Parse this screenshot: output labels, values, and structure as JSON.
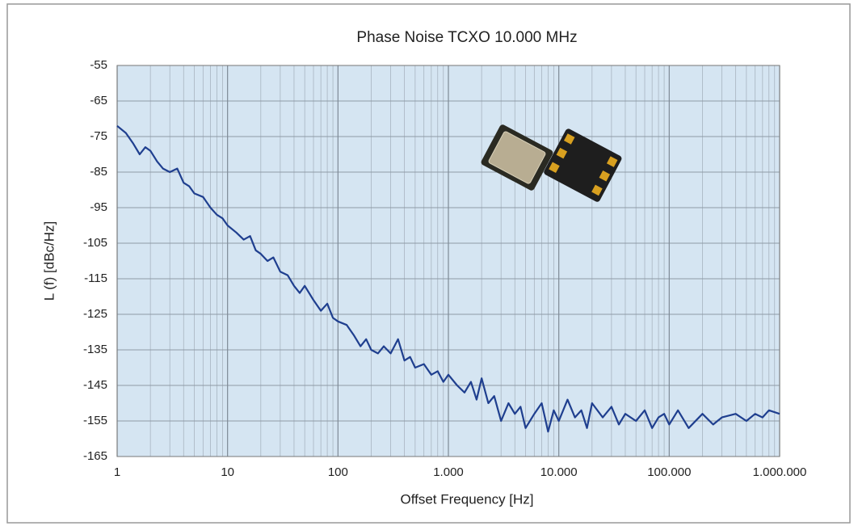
{
  "chart_data": {
    "type": "line",
    "title": "Phase Noise TCXO 10.000 MHz",
    "x_label": "Offset Frequency [Hz]",
    "y_label": "L (f)   [dBc/Hz]",
    "x_scale": "log",
    "grid": true,
    "color": "#1f3f8f",
    "xlim": [
      1,
      1000000
    ],
    "xticks": [
      1,
      10,
      100,
      {
        "value": 1000,
        "label": "1.000"
      },
      {
        "value": 10000,
        "label": "10.000"
      },
      {
        "value": 100000,
        "label": "100.000"
      },
      {
        "value": 1000000,
        "label": "1.000.000"
      }
    ],
    "ylim": [
      -165,
      -55
    ],
    "yticks": [
      -165,
      -155,
      -145,
      -135,
      -125,
      -115,
      -105,
      -95,
      -85,
      -75,
      -65,
      -55
    ],
    "x": [
      1,
      1.2,
      1.4,
      1.6,
      1.8,
      2,
      2.3,
      2.6,
      3,
      3.5,
      4,
      4.5,
      5,
      6,
      7,
      8,
      9,
      10,
      12,
      14,
      16,
      18,
      20,
      23,
      26,
      30,
      35,
      40,
      45,
      50,
      60,
      70,
      80,
      90,
      100,
      120,
      140,
      160,
      180,
      200,
      230,
      260,
      300,
      350,
      400,
      450,
      500,
      600,
      700,
      800,
      900,
      1000,
      1200,
      1400,
      1600,
      1800,
      2000,
      2300,
      2600,
      3000,
      3500,
      4000,
      4500,
      5000,
      6000,
      7000,
      8000,
      9000,
      10000,
      12000,
      14000,
      16000,
      18000,
      20000,
      25000,
      30000,
      35000,
      40000,
      50000,
      60000,
      70000,
      80000,
      90000,
      100000,
      120000,
      150000,
      200000,
      250000,
      300000,
      400000,
      500000,
      600000,
      700000,
      800000,
      1000000
    ],
    "values": [
      -72,
      -74,
      -77,
      -80,
      -78,
      -79,
      -82,
      -84,
      -85,
      -84,
      -88,
      -89,
      -91,
      -92,
      -95,
      -97,
      -98,
      -100,
      -102,
      -104,
      -103,
      -107,
      -108,
      -110,
      -109,
      -113,
      -114,
      -117,
      -119,
      -117,
      -121,
      -124,
      -122,
      -126,
      -127,
      -128,
      -131,
      -134,
      -132,
      -135,
      -136,
      -134,
      -136,
      -132,
      -138,
      -137,
      -140,
      -139,
      -142,
      -141,
      -144,
      -142,
      -145,
      -147,
      -144,
      -149,
      -143,
      -150,
      -148,
      -155,
      -150,
      -153,
      -151,
      -157,
      -153,
      -150,
      -158,
      -152,
      -155,
      -149,
      -154,
      -152,
      -157,
      -150,
      -154,
      -151,
      -156,
      -153,
      -155,
      -152,
      -157,
      -154,
      -153,
      -156,
      -152,
      -157,
      -153,
      -156,
      -154,
      -153,
      -155,
      -153,
      -154,
      -152,
      -153
    ]
  }
}
